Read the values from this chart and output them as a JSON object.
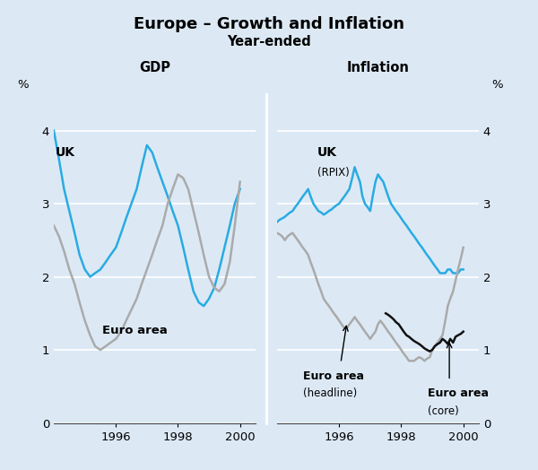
{
  "title": "Europe – Growth and Inflation",
  "subtitle": "Year-ended",
  "background_color": "#dce9f5",
  "title_fontsize": 13,
  "subtitle_fontsize": 10.5,
  "gdp_uk_x": [
    1994.0,
    1994.17,
    1994.33,
    1994.5,
    1994.67,
    1994.83,
    1995.0,
    1995.17,
    1995.33,
    1995.5,
    1995.67,
    1995.83,
    1996.0,
    1996.17,
    1996.33,
    1996.5,
    1996.67,
    1996.83,
    1997.0,
    1997.17,
    1997.33,
    1997.5,
    1997.67,
    1997.83,
    1998.0,
    1998.17,
    1998.33,
    1998.5,
    1998.67,
    1998.83,
    1999.0,
    1999.17,
    1999.33,
    1999.5,
    1999.67,
    1999.83,
    2000.0
  ],
  "gdp_uk_y": [
    4.0,
    3.6,
    3.2,
    2.9,
    2.6,
    2.3,
    2.1,
    2.0,
    2.05,
    2.1,
    2.2,
    2.3,
    2.4,
    2.6,
    2.8,
    3.0,
    3.2,
    3.5,
    3.8,
    3.7,
    3.5,
    3.3,
    3.1,
    2.9,
    2.7,
    2.4,
    2.1,
    1.8,
    1.65,
    1.6,
    1.7,
    1.85,
    2.1,
    2.4,
    2.7,
    3.0,
    3.2
  ],
  "gdp_euro_x": [
    1994.0,
    1994.17,
    1994.33,
    1994.5,
    1994.67,
    1994.83,
    1995.0,
    1995.17,
    1995.33,
    1995.5,
    1995.67,
    1995.83,
    1996.0,
    1996.17,
    1996.33,
    1996.5,
    1996.67,
    1996.83,
    1997.0,
    1997.17,
    1997.33,
    1997.5,
    1997.67,
    1997.83,
    1998.0,
    1998.17,
    1998.33,
    1998.5,
    1998.67,
    1998.83,
    1999.0,
    1999.17,
    1999.33,
    1999.5,
    1999.67,
    1999.83,
    2000.0
  ],
  "gdp_euro_y": [
    2.7,
    2.55,
    2.35,
    2.1,
    1.9,
    1.65,
    1.4,
    1.2,
    1.05,
    1.0,
    1.05,
    1.1,
    1.15,
    1.25,
    1.4,
    1.55,
    1.7,
    1.9,
    2.1,
    2.3,
    2.5,
    2.7,
    3.0,
    3.2,
    3.4,
    3.35,
    3.2,
    2.9,
    2.6,
    2.3,
    2.0,
    1.85,
    1.8,
    1.9,
    2.2,
    2.7,
    3.3
  ],
  "inf_uk_x": [
    1994.0,
    1994.08,
    1994.17,
    1994.25,
    1994.33,
    1994.42,
    1994.5,
    1994.58,
    1994.67,
    1994.75,
    1994.83,
    1994.92,
    1995.0,
    1995.08,
    1995.17,
    1995.25,
    1995.33,
    1995.42,
    1995.5,
    1995.58,
    1995.67,
    1995.75,
    1995.83,
    1995.92,
    1996.0,
    1996.08,
    1996.17,
    1996.25,
    1996.33,
    1996.42,
    1996.5,
    1996.58,
    1996.67,
    1996.75,
    1996.83,
    1996.92,
    1997.0,
    1997.08,
    1997.17,
    1997.25,
    1997.33,
    1997.42,
    1997.5,
    1997.58,
    1997.67,
    1997.75,
    1997.83,
    1997.92,
    1998.0,
    1998.08,
    1998.17,
    1998.25,
    1998.33,
    1998.42,
    1998.5,
    1998.58,
    1998.67,
    1998.75,
    1998.83,
    1998.92,
    1999.0,
    1999.08,
    1999.17,
    1999.25,
    1999.33,
    1999.42,
    1999.5,
    1999.58,
    1999.67,
    1999.75,
    1999.83,
    1999.92,
    2000.0
  ],
  "inf_uk_y": [
    2.75,
    2.78,
    2.8,
    2.82,
    2.85,
    2.88,
    2.9,
    2.95,
    3.0,
    3.05,
    3.1,
    3.15,
    3.2,
    3.1,
    3.0,
    2.95,
    2.9,
    2.88,
    2.85,
    2.87,
    2.9,
    2.92,
    2.95,
    2.98,
    3.0,
    3.05,
    3.1,
    3.15,
    3.2,
    3.35,
    3.5,
    3.4,
    3.3,
    3.1,
    3.0,
    2.95,
    2.9,
    3.1,
    3.3,
    3.4,
    3.35,
    3.3,
    3.2,
    3.1,
    3.0,
    2.95,
    2.9,
    2.85,
    2.8,
    2.75,
    2.7,
    2.65,
    2.6,
    2.55,
    2.5,
    2.45,
    2.4,
    2.35,
    2.3,
    2.25,
    2.2,
    2.15,
    2.1,
    2.05,
    2.05,
    2.05,
    2.1,
    2.1,
    2.05,
    2.05,
    2.05,
    2.1,
    2.1
  ],
  "inf_euro_headline_x": [
    1994.0,
    1994.08,
    1994.17,
    1994.25,
    1994.33,
    1994.42,
    1994.5,
    1994.58,
    1994.67,
    1994.75,
    1994.83,
    1994.92,
    1995.0,
    1995.08,
    1995.17,
    1995.25,
    1995.33,
    1995.42,
    1995.5,
    1995.58,
    1995.67,
    1995.75,
    1995.83,
    1995.92,
    1996.0,
    1996.08,
    1996.17,
    1996.25,
    1996.33,
    1996.42,
    1996.5,
    1996.58,
    1996.67,
    1996.75,
    1996.83,
    1996.92,
    1997.0,
    1997.08,
    1997.17,
    1997.25,
    1997.33,
    1997.42,
    1997.5,
    1997.58,
    1997.67,
    1997.75,
    1997.83,
    1997.92,
    1998.0,
    1998.08,
    1998.17,
    1998.25,
    1998.33,
    1998.42,
    1998.5,
    1998.58,
    1998.67,
    1998.75,
    1998.83,
    1998.92,
    1999.0,
    1999.08,
    1999.17,
    1999.25,
    1999.33,
    1999.42,
    1999.5,
    1999.58,
    1999.67,
    1999.75,
    1999.83,
    1999.92,
    2000.0
  ],
  "inf_euro_headline_y": [
    2.6,
    2.58,
    2.55,
    2.5,
    2.55,
    2.58,
    2.6,
    2.55,
    2.5,
    2.45,
    2.4,
    2.35,
    2.3,
    2.2,
    2.1,
    2.0,
    1.9,
    1.8,
    1.7,
    1.65,
    1.6,
    1.55,
    1.5,
    1.45,
    1.4,
    1.35,
    1.3,
    1.3,
    1.35,
    1.4,
    1.45,
    1.4,
    1.35,
    1.3,
    1.25,
    1.2,
    1.15,
    1.2,
    1.25,
    1.35,
    1.4,
    1.35,
    1.3,
    1.25,
    1.2,
    1.15,
    1.1,
    1.05,
    1.0,
    0.95,
    0.9,
    0.85,
    0.85,
    0.85,
    0.88,
    0.9,
    0.88,
    0.85,
    0.88,
    0.9,
    1.0,
    1.05,
    1.1,
    1.15,
    1.2,
    1.4,
    1.6,
    1.7,
    1.8,
    1.95,
    2.1,
    2.25,
    2.4
  ],
  "inf_euro_core_x": [
    1997.5,
    1997.58,
    1997.67,
    1997.75,
    1997.83,
    1997.92,
    1998.0,
    1998.08,
    1998.17,
    1998.25,
    1998.33,
    1998.42,
    1998.5,
    1998.58,
    1998.67,
    1998.75,
    1998.83,
    1998.92,
    1999.0,
    1999.08,
    1999.17,
    1999.25,
    1999.33,
    1999.42,
    1999.5,
    1999.58,
    1999.67,
    1999.75,
    1999.83,
    1999.92,
    2000.0
  ],
  "inf_euro_core_y": [
    1.5,
    1.48,
    1.45,
    1.42,
    1.38,
    1.35,
    1.3,
    1.25,
    1.2,
    1.18,
    1.15,
    1.12,
    1.1,
    1.08,
    1.05,
    1.02,
    1.0,
    0.98,
    1.0,
    1.05,
    1.08,
    1.1,
    1.15,
    1.12,
    1.08,
    1.15,
    1.1,
    1.18,
    1.2,
    1.22,
    1.25
  ],
  "uk_color": "#29abe2",
  "euro_color": "#aaaaaa",
  "core_color": "#111111",
  "ylim": [
    0,
    4.5
  ],
  "yticks": [
    0,
    1,
    2,
    3,
    4
  ],
  "xlim": [
    1994.0,
    2000.5
  ],
  "xticks": [
    1996,
    1998,
    2000
  ]
}
